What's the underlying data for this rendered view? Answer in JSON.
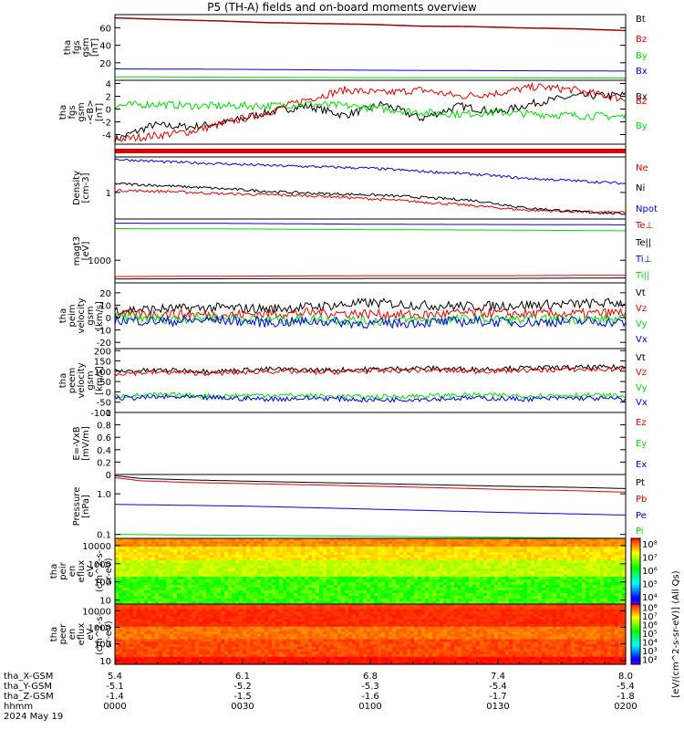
{
  "page": {
    "title": "P5 (TH-A) fields and on-board moments overview"
  },
  "colors": {
    "black": "#000000",
    "red": "#e00000",
    "green": "#00dd00",
    "blue": "#0000e0"
  },
  "chart_data": [
    {
      "id": "p1",
      "type": "line",
      "ylabel": [
        "tha",
        "fgs",
        "gsm",
        "[nT]"
      ],
      "yticks": [
        20,
        40,
        60
      ],
      "ylim": [
        0,
        75
      ],
      "series": [
        {
          "name": "Bt",
          "color": "black",
          "x": [
            0,
            90,
            240,
            360,
            480,
            600,
            720,
            840,
            960,
            1080,
            1200
          ],
          "values": [
            71.5,
            70,
            68,
            66,
            65,
            64,
            62,
            61.5,
            60,
            59,
            57
          ]
        },
        {
          "name": "Bz",
          "color": "red",
          "x": [
            0,
            90,
            240,
            360,
            480,
            600,
            720,
            840,
            960,
            1080,
            1200
          ],
          "values": [
            71,
            69.5,
            67.5,
            65.5,
            64.5,
            63.5,
            61.5,
            61,
            59.5,
            58.5,
            56.5
          ]
        },
        {
          "name": "By",
          "color": "green",
          "x": [
            0,
            300,
            600,
            900,
            1200
          ],
          "values": [
            4,
            3.5,
            3,
            2.8,
            2.5
          ]
        },
        {
          "name": "Bx",
          "color": "blue",
          "x": [
            0,
            300,
            600,
            900,
            1200
          ],
          "values": [
            13,
            12.5,
            11.5,
            11,
            10.5
          ]
        }
      ]
    },
    {
      "id": "p2",
      "type": "line",
      "ylabel": [
        "tha",
        "fgs",
        "gsm",
        "-<B>",
        "[nT]"
      ],
      "yticks": [
        -4,
        -2,
        0,
        2,
        4
      ],
      "ylim": [
        -5.5,
        4.5
      ],
      "series": [
        {
          "name": "Bx",
          "color": "black",
          "x": [
            0,
            90,
            180,
            270,
            360,
            450,
            540,
            630,
            720,
            810,
            900,
            990,
            1080,
            1200
          ],
          "values": [
            -4.8,
            -2.5,
            -2.8,
            -2.0,
            -0.5,
            0.5,
            -1.0,
            0.8,
            -1.5,
            0.5,
            -0.5,
            1.0,
            2.0,
            2.2
          ]
        },
        {
          "name": "Bz",
          "color": "red",
          "x": [
            0,
            90,
            180,
            270,
            360,
            450,
            540,
            630,
            720,
            810,
            900,
            990,
            1080,
            1200
          ],
          "values": [
            -4.8,
            -4.2,
            -3.5,
            -2.0,
            -0.5,
            1.5,
            3.0,
            2.5,
            3.0,
            2.0,
            2.5,
            3.5,
            3.0,
            1.5
          ]
        },
        {
          "name": "By",
          "color": "green",
          "x": [
            0,
            90,
            180,
            270,
            360,
            450,
            540,
            630,
            720,
            810,
            900,
            990,
            1080,
            1200
          ],
          "values": [
            0.5,
            0.8,
            0.5,
            0.5,
            0.5,
            0.8,
            0.5,
            0.0,
            -0.5,
            -0.8,
            -0.5,
            -0.8,
            -1.0,
            -1.2
          ]
        }
      ]
    },
    {
      "id": "p3",
      "type": "heatmap",
      "ylabel": [],
      "yticks": [],
      "ylim": [
        0,
        1
      ],
      "series": [
        {
          "name": "bar",
          "color": "red",
          "x": [
            0,
            1200
          ],
          "values": [
            0.5,
            0.5
          ]
        }
      ]
    },
    {
      "id": "p4",
      "type": "line",
      "yscale": "log",
      "ylabel": [
        "Density",
        "[cm-3]"
      ],
      "yticks": [
        1
      ],
      "ylim": [
        0.3,
        5
      ],
      "series": [
        {
          "name": "Ne",
          "color": "red",
          "x": [
            0,
            120,
            240,
            360,
            480,
            600,
            720,
            840,
            960,
            1080,
            1200
          ],
          "values": [
            1.1,
            1.05,
            0.95,
            0.9,
            0.85,
            0.75,
            0.65,
            0.55,
            0.45,
            0.42,
            0.4
          ]
        },
        {
          "name": "Ni",
          "color": "black",
          "x": [
            0,
            120,
            240,
            360,
            480,
            600,
            720,
            840,
            960,
            1080,
            1200
          ],
          "values": [
            1.5,
            1.35,
            1.2,
            1.05,
            0.95,
            0.9,
            0.8,
            0.7,
            0.5,
            0.42,
            0.38
          ]
        },
        {
          "name": "Npot",
          "color": "blue",
          "x": [
            0,
            120,
            240,
            360,
            480,
            600,
            720,
            840,
            960,
            1080,
            1200
          ],
          "values": [
            4.5,
            4.0,
            3.7,
            3.4,
            3.2,
            3.0,
            2.6,
            2.3,
            1.9,
            1.7,
            1.5
          ]
        }
      ]
    },
    {
      "id": "p5",
      "type": "line",
      "yscale": "log",
      "ylabel": [
        "magt3",
        "[eV]"
      ],
      "yticks": [
        1000
      ],
      "ylim": [
        300,
        9000
      ],
      "series": [
        {
          "name": "Te⊥",
          "color": "red",
          "x": [
            0,
            300,
            600,
            900,
            1200
          ],
          "values": [
            420,
            430,
            440,
            440,
            450
          ]
        },
        {
          "name": "Te||",
          "color": "black",
          "x": [
            0,
            300,
            600,
            900,
            1200
          ],
          "values": [
            370,
            375,
            380,
            380,
            390
          ]
        },
        {
          "name": "Ti⊥",
          "color": "blue",
          "x": [
            0,
            300,
            600,
            900,
            1200
          ],
          "values": [
            7200,
            7100,
            6800,
            6700,
            6600
          ]
        },
        {
          "name": "Ti||",
          "color": "green",
          "x": [
            0,
            300,
            600,
            900,
            1200
          ],
          "values": [
            5400,
            5300,
            5100,
            5000,
            4800
          ]
        }
      ]
    },
    {
      "id": "p6",
      "type": "line",
      "ylabel": [
        "tha",
        "peim",
        "velocity",
        "gsm",
        "[km/s]"
      ],
      "yticks": [
        -20,
        -10,
        0,
        10,
        20
      ],
      "ylim": [
        -25,
        28
      ],
      "series": [
        {
          "name": "Vt",
          "color": "black",
          "x": [
            0,
            120,
            240,
            360,
            480,
            600,
            720,
            840,
            960,
            1080,
            1200
          ],
          "values": [
            6,
            7,
            8,
            7,
            9,
            12,
            10,
            9,
            10,
            11,
            12
          ]
        },
        {
          "name": "Vz",
          "color": "red",
          "x": [
            0,
            120,
            240,
            360,
            480,
            600,
            720,
            840,
            960,
            1080,
            1200
          ],
          "values": [
            2,
            3,
            2,
            3,
            4,
            3,
            2,
            4,
            3,
            3,
            4
          ]
        },
        {
          "name": "Vy",
          "color": "green",
          "x": [
            0,
            120,
            240,
            360,
            480,
            600,
            720,
            840,
            960,
            1080,
            1200
          ],
          "values": [
            0,
            -1,
            0,
            -2,
            -1,
            -3,
            -2,
            -1,
            -2,
            -1,
            -2
          ]
        },
        {
          "name": "Vx",
          "color": "blue",
          "x": [
            0,
            120,
            240,
            360,
            480,
            600,
            720,
            840,
            960,
            1080,
            1200
          ],
          "values": [
            -2,
            -3,
            -2,
            -4,
            -3,
            -5,
            -4,
            -3,
            -4,
            -3,
            -4
          ]
        }
      ]
    },
    {
      "id": "p7",
      "type": "line",
      "ylabel": [
        "tha",
        "peem",
        "velocity",
        "gsm",
        "[km/s]"
      ],
      "yticks": [
        -100,
        -50,
        0,
        50,
        100,
        150,
        200
      ],
      "ylim": [
        -100,
        210
      ],
      "series": [
        {
          "name": "Vt",
          "color": "black",
          "x": [
            0,
            120,
            240,
            360,
            480,
            600,
            720,
            840,
            960,
            1080,
            1200
          ],
          "values": [
            100,
            105,
            100,
            110,
            105,
            110,
            115,
            110,
            115,
            118,
            120
          ]
        },
        {
          "name": "Vz",
          "color": "red",
          "x": [
            0,
            120,
            240,
            360,
            480,
            600,
            720,
            840,
            960,
            1080,
            1200
          ],
          "values": [
            90,
            95,
            90,
            100,
            95,
            100,
            105,
            100,
            105,
            108,
            110
          ]
        },
        {
          "name": "Vy",
          "color": "green",
          "x": [
            0,
            120,
            240,
            360,
            480,
            600,
            720,
            840,
            960,
            1080,
            1200
          ],
          "values": [
            -20,
            -15,
            -20,
            -15,
            -20,
            -25,
            -20,
            -15,
            -20,
            -15,
            -20
          ]
        },
        {
          "name": "Vx",
          "color": "blue",
          "x": [
            0,
            120,
            240,
            360,
            480,
            600,
            720,
            840,
            960,
            1080,
            1200
          ],
          "values": [
            -30,
            -25,
            -30,
            -35,
            -30,
            -40,
            -35,
            -30,
            -35,
            -30,
            -35
          ]
        }
      ]
    },
    {
      "id": "p8",
      "type": "line",
      "ylabel": [
        "E=-VxB",
        "[mV/m]"
      ],
      "yticks": [
        0.0,
        0.2,
        0.4,
        0.6,
        0.8,
        1.0
      ],
      "ylim": [
        0,
        1
      ],
      "series": [
        {
          "name": "Ez",
          "color": "red",
          "x": [],
          "values": []
        },
        {
          "name": "Ey",
          "color": "green",
          "x": [],
          "values": []
        },
        {
          "name": "Ex",
          "color": "blue",
          "x": [],
          "values": []
        }
      ]
    },
    {
      "id": "p9",
      "type": "line",
      "yscale": "log",
      "ylabel": [
        "Pressure",
        "[nPa]"
      ],
      "yticks": [
        0.1,
        1.0
      ],
      "ylim": [
        0.08,
        3
      ],
      "ytick_labels": [
        "0.1",
        "1.0"
      ],
      "series": [
        {
          "name": "Pt",
          "color": "black",
          "x": [
            0,
            60,
            180,
            360,
            540,
            720,
            900,
            1080,
            1200
          ],
          "values": [
            2.8,
            2.4,
            2.2,
            2.0,
            1.85,
            1.7,
            1.55,
            1.45,
            1.35
          ]
        },
        {
          "name": "Pb",
          "color": "red",
          "x": [
            0,
            60,
            180,
            360,
            540,
            720,
            900,
            1080,
            1200
          ],
          "values": [
            2.5,
            2.1,
            1.9,
            1.75,
            1.6,
            1.45,
            1.3,
            1.2,
            1.1
          ]
        },
        {
          "name": "Pe",
          "color": "blue",
          "x": [
            0,
            300,
            600,
            900,
            1200
          ],
          "values": [
            0.55,
            0.5,
            0.42,
            0.35,
            0.3
          ]
        },
        {
          "name": "Pi",
          "color": "green",
          "x": [
            0,
            300,
            600,
            900,
            1200
          ],
          "values": [
            0.1,
            0.095,
            0.09,
            0.085,
            0.08
          ]
        }
      ]
    },
    {
      "id": "p10",
      "type": "heatmap",
      "yscale": "log",
      "ylabel": [
        "tha",
        "peir",
        "en",
        "eflux",
        "eV",
        "(cm^2-s-",
        "sr-eV)"
      ],
      "yticks": [
        10,
        100,
        1000,
        10000
      ],
      "ylim": [
        6,
        25000
      ],
      "colorbar": {
        "ticks": [
          "10⁴",
          "10⁵",
          "10⁶",
          "10⁷",
          "10⁸"
        ]
      }
    },
    {
      "id": "p11",
      "type": "heatmap",
      "yscale": "log",
      "ylabel": [
        "tha",
        "peer",
        "en",
        "eflux",
        "eV",
        "(cm^2-s-",
        "sr-eV)"
      ],
      "yticks": [
        10,
        100,
        1000,
        10000
      ],
      "ylim": [
        6,
        25000
      ],
      "colorbar": {
        "ticks": [
          "10²",
          "10³",
          "10⁴",
          "10⁵",
          "10⁶",
          "10⁷",
          "10⁸"
        ]
      }
    }
  ],
  "colorbar_label": "[eV/(cm^2-s-sr-eV)] (All Qs)",
  "xaxis": {
    "rows": [
      {
        "label": "tha_X-GSM",
        "values": [
          "5.4",
          "6.1",
          "6.8",
          "7.4",
          "8.0"
        ]
      },
      {
        "label": "tha_Y-GSM",
        "values": [
          "-5.1",
          "-5.2",
          "-5.3",
          "-5.4",
          "-5.4"
        ]
      },
      {
        "label": "tha_Z-GSM",
        "values": [
          "-1.4",
          "-1.5",
          "-1.6",
          "-1.7",
          "-1.8"
        ]
      },
      {
        "label": "hhmm",
        "values": [
          "0000",
          "0030",
          "0100",
          "0130",
          "0200"
        ]
      }
    ],
    "date": "2024 May 19",
    "range_minutes": [
      0,
      120
    ]
  }
}
